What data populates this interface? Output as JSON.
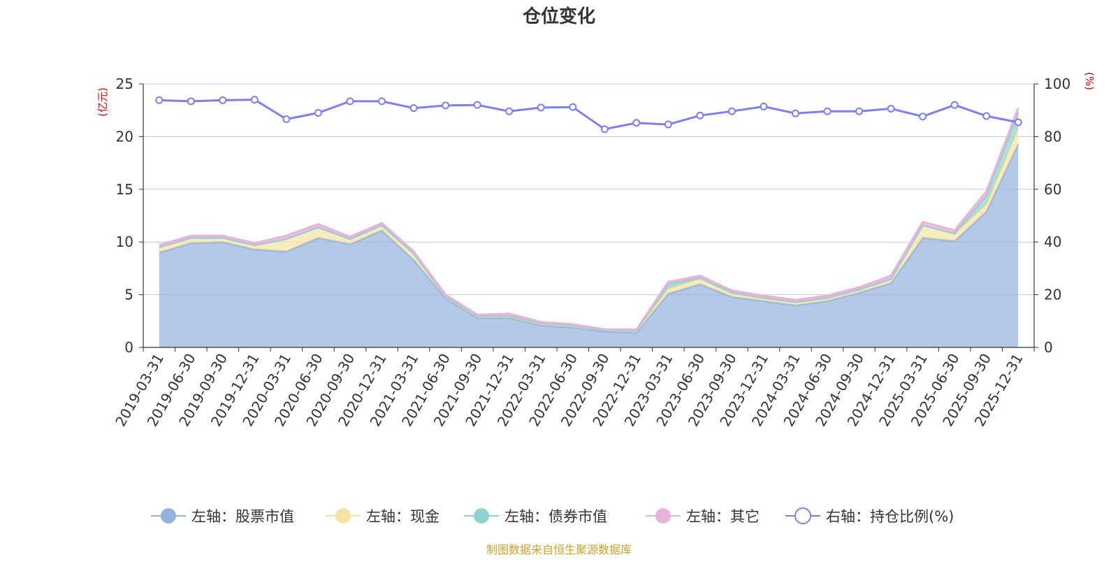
{
  "chart_data": {
    "type": "area",
    "title": "仓位变化",
    "left_unit": "(亿元)",
    "right_unit": "(%)",
    "source": "制图数据来自恒生聚源数据库",
    "x": [
      "2019-03-31",
      "2019-06-30",
      "2019-09-30",
      "2019-12-31",
      "2020-03-31",
      "2020-06-30",
      "2020-09-30",
      "2020-12-31",
      "2021-03-31",
      "2021-06-30",
      "2021-09-30",
      "2021-12-31",
      "2022-03-31",
      "2022-06-30",
      "2022-09-30",
      "2022-12-31",
      "2023-03-31",
      "2023-06-30",
      "2023-09-30",
      "2023-12-31",
      "2024-03-31",
      "2024-06-30",
      "2024-09-30",
      "2024-12-31",
      "2025-03-31",
      "2025-06-30",
      "2025-09-30",
      "2025-12-31"
    ],
    "left_axis": {
      "min": 0,
      "max": 25,
      "ticks": [
        "0",
        "5",
        "10",
        "15",
        "20",
        "25"
      ]
    },
    "right_axis": {
      "min": 0,
      "max": 100,
      "ticks": [
        "0",
        "20",
        "40",
        "60",
        "80",
        "100"
      ]
    },
    "grid": true,
    "legend_position": "bottom",
    "series": [
      {
        "name": "左轴：股票市值",
        "axis": "left",
        "stacked": true,
        "color": "#94b1de",
        "values": [
          9.0,
          9.9,
          10.0,
          9.3,
          9.1,
          10.4,
          9.8,
          11.1,
          8.3,
          4.7,
          2.8,
          2.8,
          2.1,
          1.9,
          1.5,
          1.4,
          5.1,
          6.0,
          4.8,
          4.4,
          4.0,
          4.4,
          5.2,
          6.1,
          10.4,
          10.1,
          12.9,
          19.3
        ]
      },
      {
        "name": "左轴：现金",
        "axis": "left",
        "stacked": true,
        "color": "#f5e3a1",
        "values": [
          0.5,
          0.5,
          0.4,
          0.4,
          1.2,
          1.0,
          0.5,
          0.5,
          0.6,
          0.2,
          0.2,
          0.2,
          0.2,
          0.2,
          0.1,
          0.2,
          0.5,
          0.5,
          0.4,
          0.3,
          0.3,
          0.3,
          0.3,
          0.4,
          1.2,
          0.7,
          0.7,
          1.5
        ]
      },
      {
        "name": "左轴：债券市值",
        "axis": "left",
        "stacked": true,
        "color": "#8dd3d0",
        "values": [
          0.0,
          0.0,
          0.0,
          0.0,
          0.0,
          0.0,
          0.0,
          0.0,
          0.0,
          0.0,
          0.0,
          0.0,
          0.0,
          0.0,
          0.0,
          0.0,
          0.4,
          0.1,
          0.0,
          0.0,
          0.0,
          0.0,
          0.0,
          0.0,
          0.0,
          0.0,
          0.8,
          1.5
        ]
      },
      {
        "name": "左轴：其它",
        "axis": "left",
        "stacked": true,
        "color": "#e8b3d9",
        "values": [
          0.2,
          0.2,
          0.2,
          0.2,
          0.3,
          0.3,
          0.2,
          0.2,
          0.2,
          0.1,
          0.1,
          0.2,
          0.1,
          0.1,
          0.1,
          0.1,
          0.2,
          0.2,
          0.2,
          0.2,
          0.2,
          0.2,
          0.2,
          0.3,
          0.3,
          0.3,
          0.4,
          0.4
        ]
      },
      {
        "name": "右轴：持仓比例(%)",
        "axis": "right",
        "stacked": false,
        "color": "#7b7ff0",
        "values": [
          93.8,
          93.4,
          93.8,
          94.0,
          86.6,
          89.0,
          93.4,
          93.4,
          90.8,
          91.8,
          92.0,
          89.6,
          91.0,
          91.2,
          82.8,
          85.2,
          84.6,
          88.0,
          89.6,
          91.4,
          88.8,
          89.6,
          89.6,
          90.6,
          87.6,
          92.0,
          87.8,
          85.4
        ]
      }
    ]
  }
}
